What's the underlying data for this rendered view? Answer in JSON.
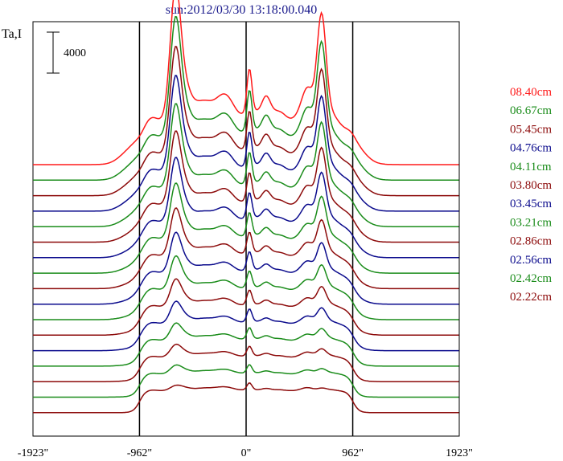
{
  "chart_data": {
    "type": "line",
    "title": "sun:2012/03/30 13:18:00.040",
    "title_color": "#1a1a8c",
    "ylabel": "Ta,I",
    "scale_bar_label": "4000",
    "xlim": [
      -1923,
      1923
    ],
    "xticks": [
      {
        "value": -1923,
        "label": "-1923\""
      },
      {
        "value": -962,
        "label": "-962\""
      },
      {
        "value": 0,
        "label": "0\""
      },
      {
        "value": 962,
        "label": "962\""
      },
      {
        "value": 1923,
        "label": "1923\""
      }
    ],
    "vertical_lines": [
      -962,
      0,
      962
    ],
    "series": [
      {
        "name": "08.40cm",
        "color": "#ff1a1a"
      },
      {
        "name": "06.67cm",
        "color": "#1a8c1a"
      },
      {
        "name": "05.45cm",
        "color": "#8c0a0a"
      },
      {
        "name": "04.76cm",
        "color": "#0a0a8c"
      },
      {
        "name": "04.11cm",
        "color": "#1a8c1a"
      },
      {
        "name": "03.80cm",
        "color": "#8c0a0a"
      },
      {
        "name": "03.45cm",
        "color": "#0a0a8c"
      },
      {
        "name": "03.21cm",
        "color": "#1a8c1a"
      },
      {
        "name": "02.86cm",
        "color": "#8c0a0a"
      },
      {
        "name": "02.56cm",
        "color": "#0a0a8c"
      },
      {
        "name": "02.42cm",
        "color": "#1a8c1a"
      },
      {
        "name": "02.22cm",
        "color": "#8c0a0a"
      },
      {
        "name": "",
        "color": "#0a0a8c"
      },
      {
        "name": "",
        "color": "#1a8c1a"
      },
      {
        "name": "",
        "color": "#8c0a0a"
      },
      {
        "name": "",
        "color": "#1a8c1a"
      },
      {
        "name": "",
        "color": "#8c0a0a"
      }
    ]
  }
}
